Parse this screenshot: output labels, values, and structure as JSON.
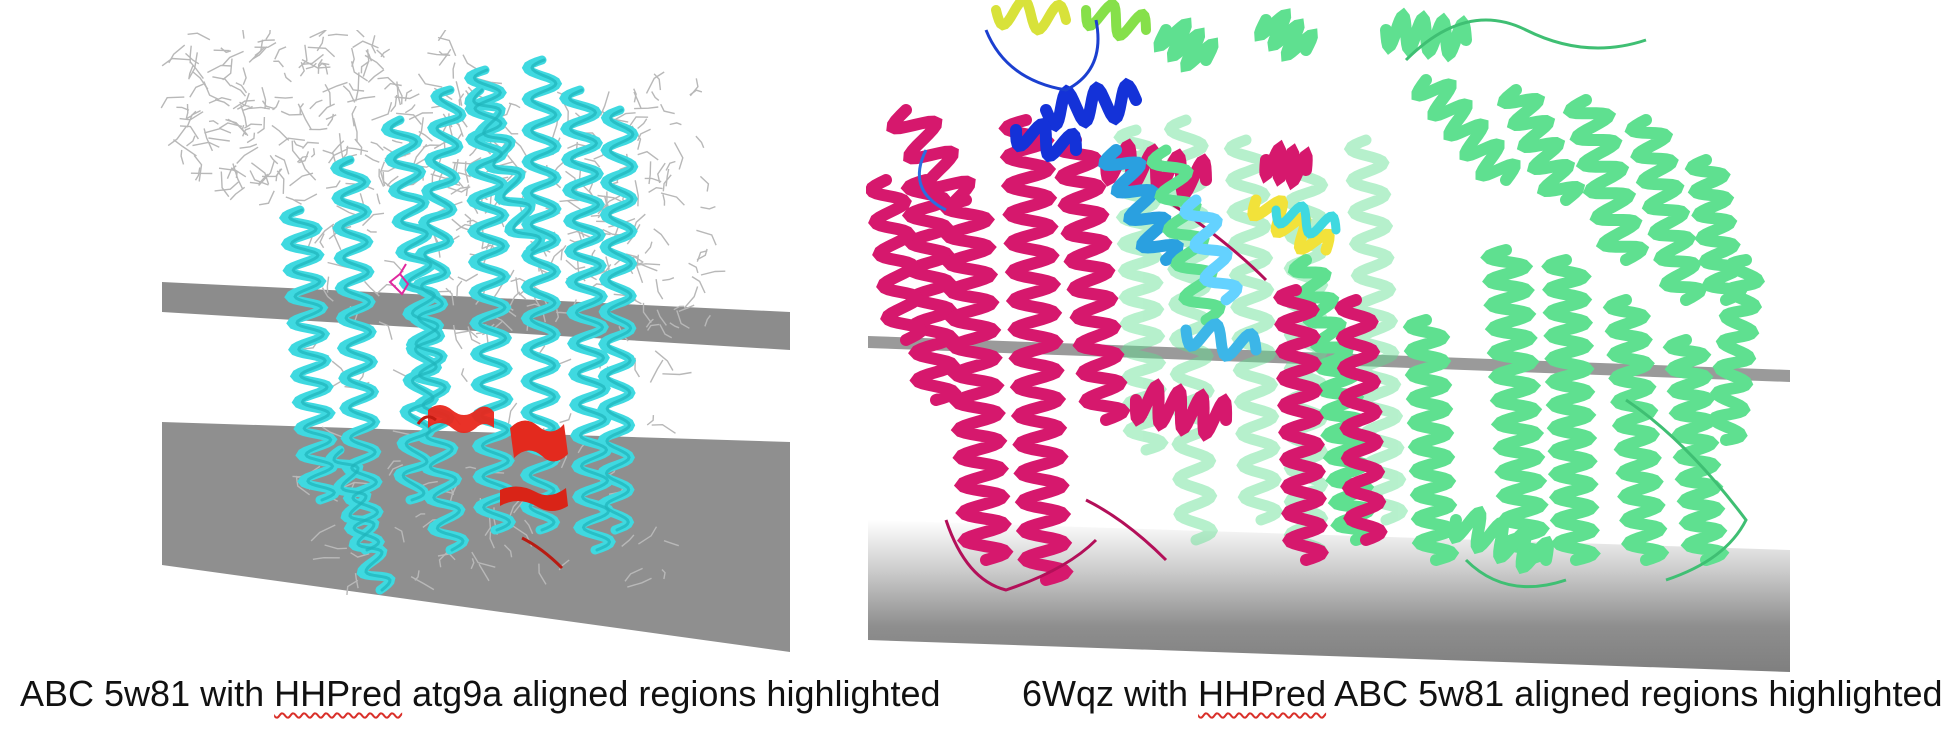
{
  "captions": {
    "left": {
      "before": "ABC 5w81 with ",
      "flagged": "HHPred",
      "after": " atg9a aligned regions highlighted"
    },
    "right": {
      "before": "6Wqz with ",
      "flagged": "HHPred",
      "after": "  ABC 5w81 aligned regions highlighted"
    }
  },
  "colors": {
    "helix_cyan": "#3fd9e0",
    "highlight_red": "#e8271c",
    "membrane_gray": "#8c8c8c",
    "magenta": "#d6186d",
    "green": "#5fe090",
    "blue": "#1432d8",
    "yellow": "#f2e23a",
    "sidechain_gray": "#bdbdbd",
    "spellcheck_red": "#d9302a"
  }
}
